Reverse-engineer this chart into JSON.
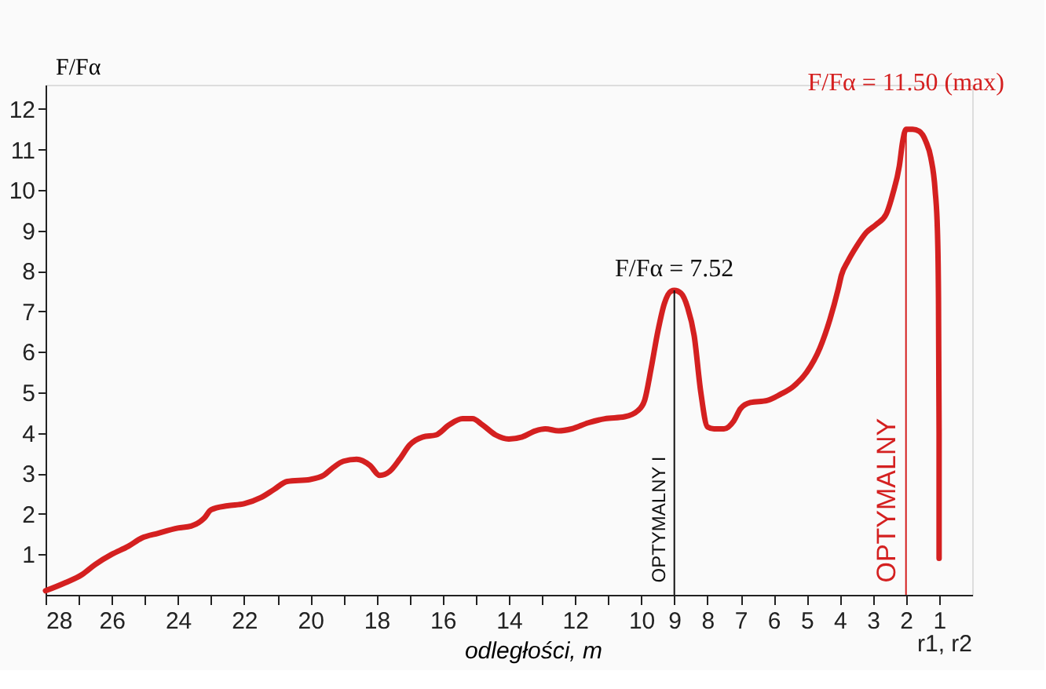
{
  "chart_data": {
    "type": "line",
    "xlabel": "odległości, m",
    "ylabel": "F/Fα",
    "x": [
      28,
      27.4,
      26.9,
      26.5,
      26,
      25.5,
      25.1,
      24.6,
      24,
      23.6,
      23.2,
      23,
      22.5,
      22,
      21.5,
      21.1,
      20.7,
      20,
      19.6,
      19.3,
      19,
      18.6,
      18.2,
      17.9,
      17.6,
      17.3,
      17,
      16.6,
      16.2,
      15.8,
      15.4,
      15.1,
      14.8,
      14.4,
      14,
      13.6,
      13.2,
      12.9,
      12.5,
      12.1,
      11.6,
      11.1,
      10.5,
      10.1,
      9.9,
      9.7,
      9.5,
      9.3,
      9.1,
      9,
      8.8,
      8.6,
      8.4,
      8.2,
      8.0,
      7.8,
      7.5,
      7.2,
      7.0,
      6.7,
      6.2,
      5.8,
      5.4,
      5.0,
      4.6,
      4.3,
      4.05,
      3.95,
      3.75,
      3.5,
      3.2,
      2.9,
      2.6,
      2.4,
      2.2,
      2.1,
      2.0,
      1.8,
      1.6,
      1.4,
      1.25,
      1.12,
      1.05,
      1.02,
      1.0,
      1.0
    ],
    "series": [
      {
        "color": "#d42020",
        "values": [
          0.1,
          0.3,
          0.5,
          0.75,
          1.0,
          1.2,
          1.4,
          1.52,
          1.65,
          1.7,
          1.9,
          2.1,
          2.2,
          2.25,
          2.4,
          2.6,
          2.8,
          2.85,
          2.95,
          3.15,
          3.3,
          3.35,
          3.2,
          2.95,
          3.05,
          3.35,
          3.7,
          3.9,
          3.95,
          4.2,
          4.35,
          4.35,
          4.2,
          3.95,
          3.85,
          3.9,
          4.05,
          4.1,
          4.05,
          4.1,
          4.25,
          4.35,
          4.4,
          4.55,
          4.8,
          5.6,
          6.5,
          7.2,
          7.5,
          7.52,
          7.45,
          7.1,
          6.4,
          5.0,
          4.15,
          4.1,
          4.1,
          4.3,
          4.6,
          4.75,
          4.8,
          4.95,
          5.15,
          5.5,
          6.1,
          6.8,
          7.55,
          7.9,
          8.25,
          8.6,
          8.95,
          9.15,
          9.4,
          9.9,
          10.6,
          11.2,
          11.5,
          11.5,
          11.45,
          11.2,
          10.8,
          10.0,
          9.0,
          7.5,
          4.0,
          0.9
        ]
      }
    ],
    "xlim": [
      28,
      0
    ],
    "ylim": [
      0,
      12.6
    ],
    "xticks": [
      28,
      {
        "value": 27,
        "label": null
      },
      26,
      {
        "value": 25,
        "label": null
      },
      24,
      {
        "value": 23,
        "label": null
      },
      22,
      {
        "value": 21,
        "label": null
      },
      20,
      {
        "value": 19,
        "label": null
      },
      18,
      {
        "value": 17,
        "label": null
      },
      16,
      {
        "value": 15,
        "label": null
      },
      14,
      {
        "value": 13,
        "label": null
      },
      12,
      {
        "value": 11,
        "label": null
      },
      10,
      9,
      8,
      7,
      6,
      5,
      4,
      3,
      2,
      1
    ],
    "yticks": [
      1,
      2,
      3,
      4,
      5,
      6,
      7,
      8,
      9,
      10,
      11,
      12
    ],
    "grid": false,
    "marker": "none",
    "line_style": "solid",
    "ref_lines": [
      {
        "axis": "x",
        "value": 9,
        "label": "OPTYMALNY I",
        "color": "#111111"
      },
      {
        "axis": "x",
        "value": 2,
        "label": "OPTYMALNY",
        "color": "#d42020"
      }
    ],
    "annotations": [
      {
        "text": "F/Fα = 7.52",
        "x": 9,
        "y": 7.52
      },
      {
        "text": "F/Fα = 11.50 (max)",
        "x": 2,
        "y": 11.5
      },
      "r1, r2"
    ]
  }
}
